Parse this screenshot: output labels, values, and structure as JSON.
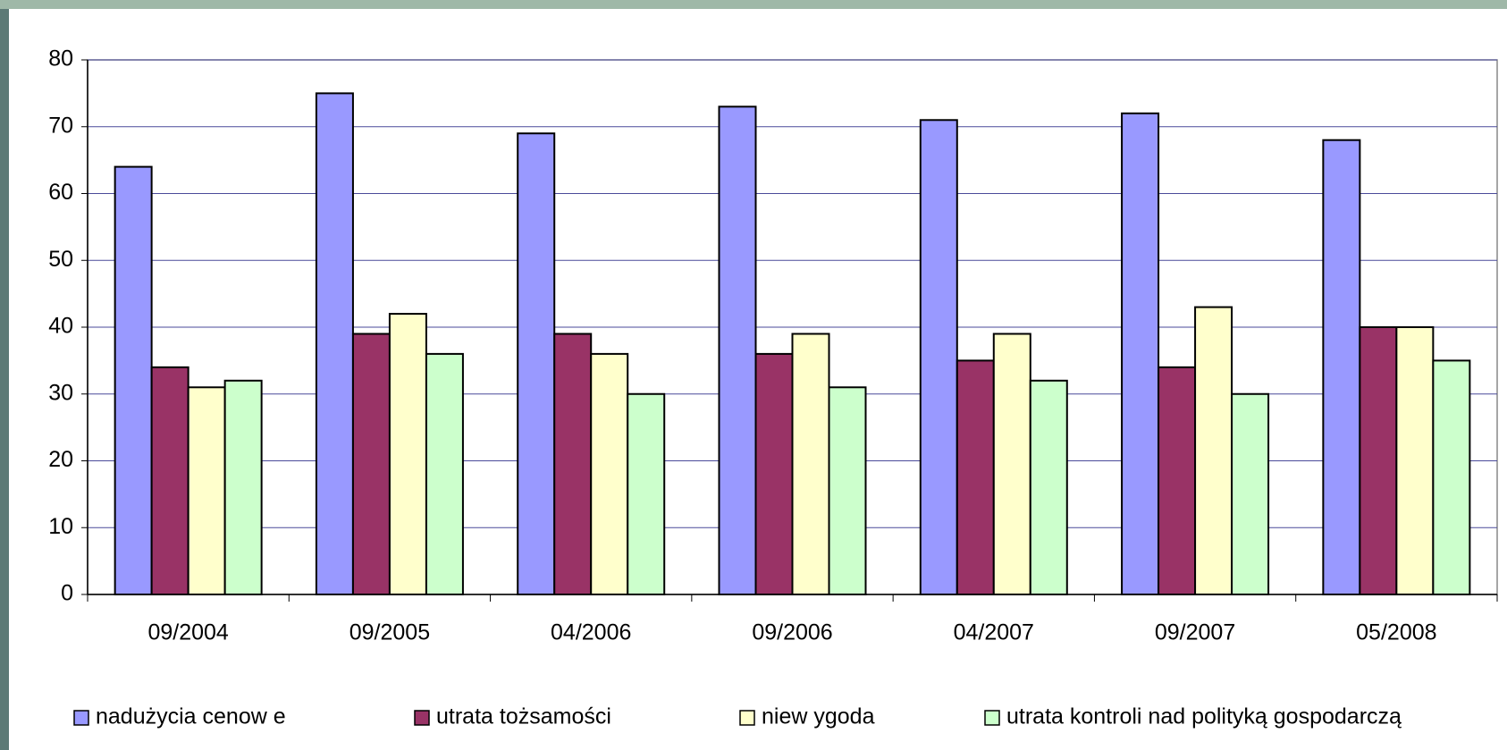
{
  "chart_data": {
    "type": "bar",
    "categories": [
      "09/2004",
      "09/2005",
      "04/2006",
      "09/2006",
      "04/2007",
      "09/2007",
      "05/2008"
    ],
    "series": [
      {
        "name": "nadużycia cenow e",
        "color": "#9999ff",
        "values": [
          64,
          75,
          69,
          73,
          71,
          72,
          68
        ]
      },
      {
        "name": "utrata tożsamości",
        "color": "#993366",
        "values": [
          34,
          39,
          39,
          36,
          35,
          34,
          40
        ]
      },
      {
        "name": "niew ygoda",
        "color": "#ffffcc",
        "values": [
          31,
          42,
          36,
          39,
          39,
          43,
          40
        ]
      },
      {
        "name": "utrata kontroli nad polityką gospodarczą",
        "color": "#ccffcc",
        "values": [
          32,
          36,
          30,
          31,
          32,
          30,
          35
        ]
      }
    ],
    "ylim": [
      0,
      80
    ],
    "yticks": [
      0,
      10,
      20,
      30,
      40,
      50,
      60,
      70,
      80
    ],
    "grid": true,
    "legend": "bottom"
  }
}
